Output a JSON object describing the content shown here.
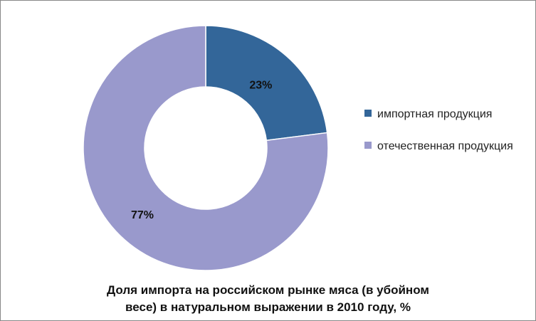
{
  "chart_data": {
    "type": "pie",
    "variant": "donut",
    "title": "Доля импорта на российском рынке мяса (в убойном весе) в натуральном выражении в 2010 году, %",
    "title_lines": [
      "Доля импорта на российском рынке мяса (в убойном",
      "весе) в натуральном выражении в 2010 году, %"
    ],
    "legend_position": "right",
    "slices": [
      {
        "label": "импортная продукция",
        "value": 23,
        "data_label": "23%",
        "color": "#336699"
      },
      {
        "label": "отечественная продукция",
        "value": 77,
        "data_label": "77%",
        "color": "#9999CC"
      }
    ]
  }
}
